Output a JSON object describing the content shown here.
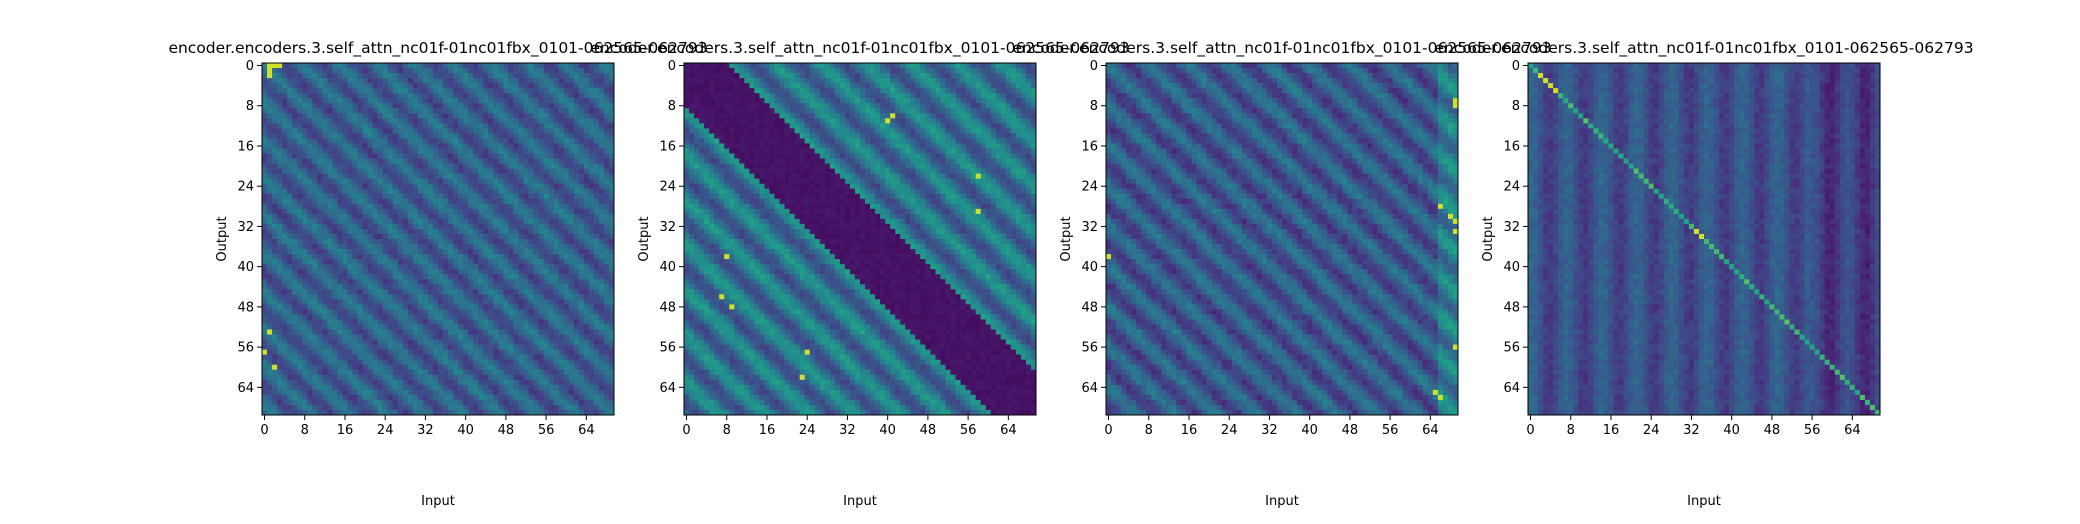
{
  "chart_data": [
    {
      "type": "heatmap",
      "title": "encoder.encoders.3.self_attn_nc01f-01nc01fbx_0101-062565-062793",
      "xlabel": "Input",
      "ylabel": "Output",
      "xticks": [
        "0",
        "8",
        "16",
        "24",
        "32",
        "40",
        "48",
        "56",
        "64"
      ],
      "yticks": [
        "0",
        "8",
        "16",
        "24",
        "32",
        "40",
        "48",
        "56",
        "64"
      ],
      "matrix_size": [
        70,
        70
      ],
      "colormap": "viridis",
      "pattern": "diagonal stripes with bright cells near origin and in left columns",
      "bright_spots": [
        [
          0,
          1
        ],
        [
          0,
          2
        ],
        [
          0,
          3
        ],
        [
          1,
          1
        ],
        [
          2,
          1
        ],
        [
          53,
          1
        ],
        [
          60,
          2
        ],
        [
          57,
          0
        ]
      ]
    },
    {
      "type": "heatmap",
      "title": "encoder.encoders.3.self_attn_nc01f-01nc01fbx_0101-062565-062793",
      "xlabel": "Input",
      "ylabel": "Output",
      "xticks": [
        "0",
        "8",
        "16",
        "24",
        "32",
        "40",
        "48",
        "56",
        "64"
      ],
      "yticks": [
        "0",
        "8",
        "16",
        "24",
        "32",
        "40",
        "48",
        "56",
        "64"
      ],
      "matrix_size": [
        70,
        70
      ],
      "colormap": "viridis",
      "pattern": "dark main diagonal band, bright diagonal stripes above and below",
      "bright_spots": [
        [
          10,
          41
        ],
        [
          11,
          40
        ],
        [
          22,
          58
        ],
        [
          29,
          58
        ],
        [
          38,
          8
        ],
        [
          46,
          7
        ],
        [
          48,
          9
        ],
        [
          57,
          24
        ],
        [
          62,
          23
        ]
      ]
    },
    {
      "type": "heatmap",
      "title": "encoder.encoders.3.self_attn_nc01f-01nc01fbx_0101-062565-062793",
      "xlabel": "Input",
      "ylabel": "Output",
      "xticks": [
        "0",
        "8",
        "16",
        "24",
        "32",
        "40",
        "48",
        "56",
        "64"
      ],
      "yticks": [
        "0",
        "8",
        "16",
        "24",
        "32",
        "40",
        "48",
        "56",
        "64"
      ],
      "matrix_size": [
        70,
        70
      ],
      "colormap": "viridis",
      "pattern": "dark diagonal stripes with bright cells in right-most columns",
      "bright_spots": [
        [
          7,
          69
        ],
        [
          8,
          69
        ],
        [
          30,
          68
        ],
        [
          31,
          69
        ],
        [
          33,
          69
        ],
        [
          28,
          66
        ],
        [
          65,
          65
        ],
        [
          66,
          66
        ],
        [
          38,
          0
        ],
        [
          56,
          69
        ]
      ]
    },
    {
      "type": "heatmap",
      "title": "encoder.encoders.3.self_attn_nc01f-01nc01fbx_0101-062565-062793",
      "xlabel": "Input",
      "ylabel": "Output",
      "xticks": [
        "0",
        "8",
        "16",
        "24",
        "32",
        "40",
        "48",
        "56",
        "64"
      ],
      "yticks": [
        "0",
        "8",
        "16",
        "24",
        "32",
        "40",
        "48",
        "56",
        "64"
      ],
      "matrix_size": [
        70,
        70
      ],
      "colormap": "viridis",
      "pattern": "strong bright main diagonal over dark background",
      "bright_spots": [
        [
          2,
          2
        ],
        [
          3,
          3
        ],
        [
          4,
          4
        ],
        [
          5,
          5
        ],
        [
          33,
          33
        ],
        [
          34,
          34
        ]
      ]
    }
  ],
  "colors": {
    "background": "#ffffff",
    "axis": "#000000",
    "viridis_low": "#440154",
    "viridis_mid": "#21918c",
    "viridis_high": "#fde725"
  }
}
